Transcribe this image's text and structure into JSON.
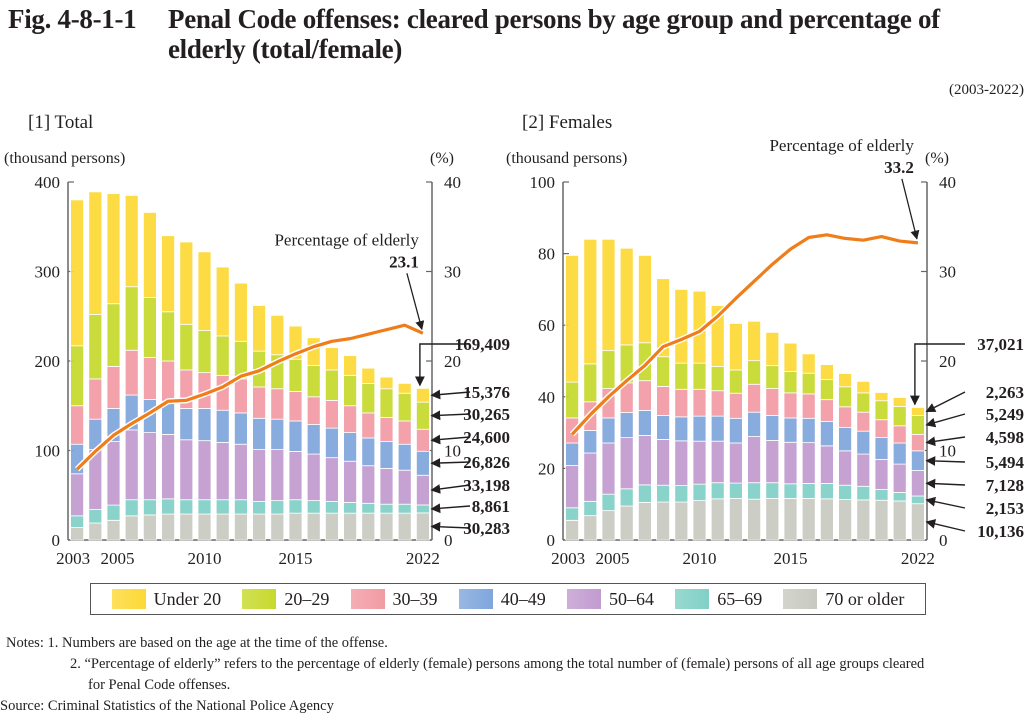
{
  "figure": {
    "number": "Fig. 4-8-1-1",
    "title_line1": "Penal Code offenses: cleared persons by age group and percentage of",
    "title_line2": "elderly (total/female)",
    "period": "(2003-2022)"
  },
  "legend": [
    {
      "label": "Under 20",
      "color": "#fdd835"
    },
    {
      "label": "20–29",
      "color": "#c6d92c"
    },
    {
      "label": "30–39",
      "color": "#f29aa3"
    },
    {
      "label": "40–49",
      "color": "#7fa6dc"
    },
    {
      "label": "50–64",
      "color": "#c29bd0"
    },
    {
      "label": "65–69",
      "color": "#7fd0c6"
    },
    {
      "label": "70 or older",
      "color": "#c8c9bf"
    }
  ],
  "colors": {
    "line": "#ef7d1a",
    "line_label": "#e8551c",
    "axis": "#555555"
  },
  "notes": {
    "note1": "Notes: 1. Numbers are based on the age at the time of the offense.",
    "note2": "2. “Percentage of elderly” refers to the percentage of elderly (female) persons among the total number of (female) persons of all age groups cleared",
    "note2b": "for Penal Code offenses.",
    "source": "Source: Criminal Statistics of the National Police Agency"
  },
  "chart_data": [
    {
      "type": "bar",
      "stacked": true,
      "panel_label": "[1] Total",
      "ylabel": "(thousand persons)",
      "y2label": "(%)",
      "ylim": [
        0,
        400
      ],
      "y2lim": [
        0,
        40
      ],
      "yticks": [
        0,
        100,
        200,
        300,
        400
      ],
      "y2ticks": [
        0,
        10,
        20,
        30,
        40
      ],
      "x_tick_labels": [
        "2003",
        "2005",
        "2010",
        "2015",
        "2022"
      ],
      "categories": [
        "2003",
        "2004",
        "2005",
        "2006",
        "2007",
        "2008",
        "2009",
        "2010",
        "2011",
        "2012",
        "2013",
        "2014",
        "2015",
        "2016",
        "2017",
        "2018",
        "2019",
        "2020",
        "2021",
        "2022"
      ],
      "series": [
        {
          "name": "70 or older",
          "values": [
            14,
            19,
            22,
            27,
            28,
            29,
            29,
            29,
            29,
            29,
            29,
            29,
            30,
            30,
            30,
            30,
            30,
            30,
            30,
            30.283
          ]
        },
        {
          "name": "65–69",
          "values": [
            13,
            15,
            17,
            18,
            17,
            17,
            16,
            16,
            16,
            16,
            14,
            15,
            15,
            14,
            13,
            12,
            11,
            10,
            10,
            8.861
          ]
        },
        {
          "name": "50–64",
          "values": [
            47,
            67,
            71,
            78,
            75,
            72,
            67,
            66,
            64,
            62,
            58,
            57,
            54,
            52,
            49,
            46,
            42,
            40,
            38,
            33.198
          ]
        },
        {
          "name": "40–49",
          "values": [
            33,
            34,
            37,
            39,
            37,
            37,
            35,
            36,
            36,
            35,
            35,
            34,
            34,
            33,
            33,
            32,
            31,
            30,
            29,
            26.826
          ]
        },
        {
          "name": "30–39",
          "values": [
            43,
            45,
            47,
            50,
            47,
            45,
            43,
            40,
            39,
            38,
            35,
            34,
            33,
            31,
            31,
            30,
            28,
            27,
            26,
            24.6
          ]
        },
        {
          "name": "20–29",
          "values": [
            67,
            72,
            70,
            71,
            67,
            55,
            51,
            47,
            44,
            42,
            40,
            38,
            36,
            35,
            34,
            34,
            33,
            32,
            31,
            30.265
          ]
        },
        {
          "name": "Under 20",
          "values": [
            163,
            137,
            123,
            102,
            95,
            85,
            92,
            88,
            77,
            65,
            51,
            44,
            37,
            31,
            25,
            22,
            17,
            13,
            11,
            15.376
          ]
        }
      ],
      "totals": [
        380,
        389,
        387,
        385,
        366,
        340,
        333,
        322,
        305,
        287,
        262,
        251,
        239,
        226,
        215,
        206,
        192,
        182,
        175,
        169.409
      ],
      "line": {
        "name": "Percentage of elderly",
        "axis": "right",
        "values": [
          7.9,
          9.9,
          11.7,
          13.0,
          14.2,
          15.5,
          15.6,
          16.3,
          17.1,
          18.3,
          18.9,
          19.9,
          20.8,
          21.6,
          22.2,
          22.5,
          23.0,
          23.5,
          24.0,
          23.1
        ]
      },
      "annotations": {
        "line_label": "Percentage of elderly",
        "line_value": "23.1",
        "total_2022": "169,409",
        "segments_2022": [
          {
            "label": "15,376",
            "series": "Under 20"
          },
          {
            "label": "30,265",
            "series": "20–29"
          },
          {
            "label": "24,600",
            "series": "30–39"
          },
          {
            "label": "26,826",
            "series": "40–49"
          },
          {
            "label": "33,198",
            "series": "50–64"
          },
          {
            "label": "8,861",
            "series": "65–69"
          },
          {
            "label": "30,283",
            "series": "70 or older"
          }
        ]
      }
    },
    {
      "type": "bar",
      "stacked": true,
      "panel_label": "[2] Females",
      "ylabel": "(thousand persons)",
      "y2label": "(%)",
      "ylim": [
        0,
        100
      ],
      "y2lim": [
        0,
        40
      ],
      "yticks": [
        0,
        20,
        40,
        60,
        80,
        100
      ],
      "y2ticks": [
        0,
        10,
        20,
        30,
        40
      ],
      "x_tick_labels": [
        "2003",
        "2005",
        "2010",
        "2015",
        "2022"
      ],
      "categories": [
        "2003",
        "2004",
        "2005",
        "2006",
        "2007",
        "2008",
        "2009",
        "2010",
        "2011",
        "2012",
        "2013",
        "2014",
        "2015",
        "2016",
        "2017",
        "2018",
        "2019",
        "2020",
        "2021",
        "2022"
      ],
      "series": [
        {
          "name": "70 or older",
          "values": [
            5.5,
            6.8,
            8.2,
            9.5,
            10.5,
            10.6,
            10.6,
            11,
            11.5,
            11.6,
            11.4,
            11.6,
            11.6,
            11.6,
            11.5,
            11.3,
            11.2,
            11.1,
            10.9,
            10.136
          ]
        },
        {
          "name": "65–69",
          "values": [
            3.5,
            4.0,
            4.6,
            4.8,
            4.9,
            4.7,
            4.6,
            4.6,
            4.5,
            4.3,
            4.6,
            4.4,
            4.1,
            4.2,
            4.3,
            4.0,
            3.8,
            3.0,
            2.4,
            2.153
          ]
        },
        {
          "name": "50–64",
          "values": [
            11.8,
            13.5,
            14.3,
            14.3,
            13.8,
            12.8,
            12.5,
            12,
            11.6,
            11.2,
            12.9,
            11.8,
            11.6,
            11.4,
            10.5,
            9.6,
            9.0,
            8.4,
            7.9,
            7.128
          ]
        },
        {
          "name": "40–49",
          "values": [
            6.3,
            6.3,
            7.0,
            7.0,
            7.0,
            6.7,
            6.7,
            7.0,
            7.0,
            6.9,
            6.8,
            7.0,
            6.8,
            6.8,
            6.8,
            6.5,
            6.4,
            6.1,
            5.9,
            5.494
          ]
        },
        {
          "name": "30–39",
          "values": [
            7.0,
            8.0,
            8.2,
            8.3,
            8.3,
            8.1,
            7.7,
            7.5,
            7.1,
            7.0,
            7.8,
            7.5,
            7.0,
            6.8,
            6.1,
            5.8,
            5.3,
            5.0,
            4.8,
            4.598
          ]
        },
        {
          "name": "20–29",
          "values": [
            10.0,
            10.6,
            10.6,
            10.6,
            10.6,
            8.3,
            7.3,
            7.3,
            6.8,
            6.5,
            6.6,
            6.4,
            6.0,
            5.8,
            5.6,
            5.6,
            5.4,
            5.3,
            5.4,
            5.249
          ]
        },
        {
          "name": "Under 20",
          "values": [
            35.4,
            34.8,
            31.1,
            27.0,
            24.4,
            21.8,
            20.6,
            20.1,
            17.0,
            13.0,
            11.0,
            9.3,
            7.9,
            5.4,
            4.2,
            3.7,
            3.2,
            2.3,
            2.5,
            2.263
          ]
        }
      ],
      "totals": [
        79.5,
        84.0,
        84.0,
        81.5,
        79.5,
        73.0,
        70.0,
        69.5,
        65.5,
        60.5,
        55.0,
        51.5,
        49.0,
        46.0,
        44.8,
        43.0,
        40.5,
        38.8,
        39.3,
        37.021
      ],
      "line": {
        "name": "Percentage of elderly",
        "axis": "right",
        "values": [
          11.8,
          14.0,
          16.0,
          17.8,
          19.5,
          21.6,
          22.4,
          23.3,
          25.0,
          27.0,
          28.9,
          30.8,
          32.5,
          33.8,
          34.1,
          33.7,
          33.5,
          33.9,
          33.4,
          33.2
        ]
      },
      "annotations": {
        "line_label": "Percentage of elderly",
        "line_value": "33.2",
        "total_2022": "37,021",
        "segments_2022": [
          {
            "label": "2,263",
            "series": "Under 20"
          },
          {
            "label": "5,249",
            "series": "20–29"
          },
          {
            "label": "4,598",
            "series": "30–39"
          },
          {
            "label": "5,494",
            "series": "40–49"
          },
          {
            "label": "7,128",
            "series": "50–64"
          },
          {
            "label": "2,153",
            "series": "65–69"
          },
          {
            "label": "10,136",
            "series": "70 or older"
          }
        ]
      }
    }
  ]
}
